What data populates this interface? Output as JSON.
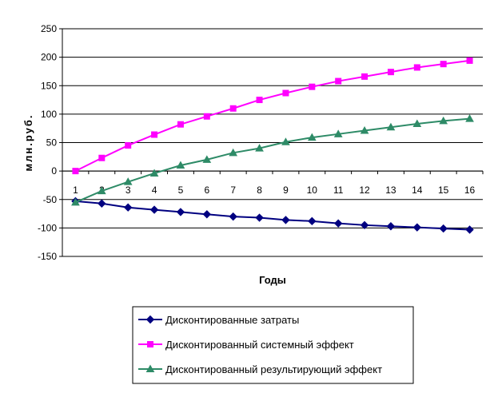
{
  "chart_data": {
    "type": "line",
    "title": "",
    "xlabel": "Годы",
    "ylabel": "млн.руб.",
    "x": [
      1,
      2,
      3,
      4,
      5,
      6,
      7,
      8,
      9,
      10,
      11,
      12,
      13,
      14,
      15,
      16
    ],
    "ylim": [
      -150,
      250
    ],
    "yticks": [
      -150,
      -100,
      -50,
      0,
      50,
      100,
      150,
      200,
      250
    ],
    "grid": true,
    "legend_position": "bottom",
    "series": [
      {
        "name": "Дисконтированные затраты",
        "color": "#000080",
        "marker": "diamond",
        "values": [
          -53,
          -57,
          -64,
          -68,
          -72,
          -76,
          -80,
          -82,
          -86,
          -88,
          -92,
          -95,
          -97,
          -99,
          -101,
          -103
        ]
      },
      {
        "name": "Дисконтированный системный эффект",
        "color": "#ff00ff",
        "marker": "square",
        "values": [
          0,
          23,
          45,
          64,
          82,
          96,
          110,
          125,
          137,
          148,
          158,
          166,
          174,
          182,
          188,
          194
        ]
      },
      {
        "name": "Дисконтированный результирующий эффект",
        "color": "#2e8b67",
        "marker": "triangle",
        "values": [
          -55,
          -35,
          -19,
          -4,
          10,
          20,
          32,
          40,
          51,
          59,
          65,
          71,
          77,
          83,
          88,
          92
        ]
      }
    ]
  }
}
